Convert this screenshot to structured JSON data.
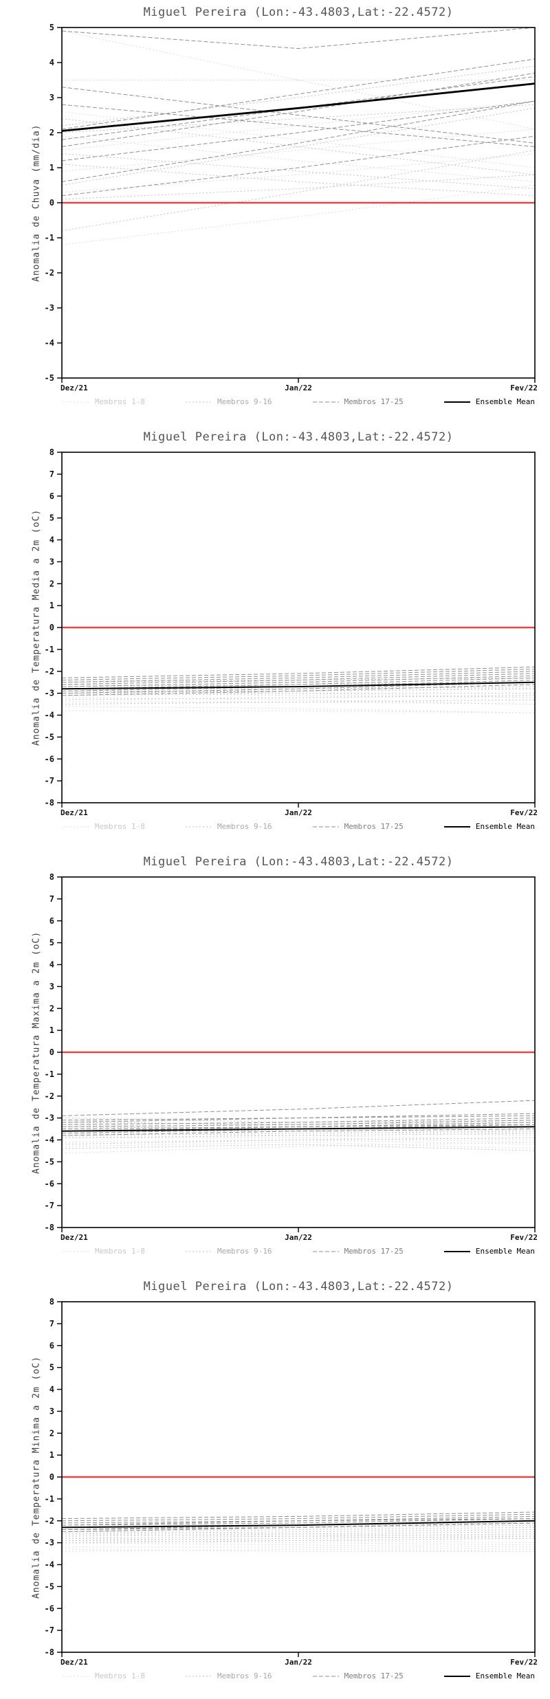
{
  "page": {
    "background": "#ffffff"
  },
  "legend": {
    "items": [
      {
        "label": "Membros 1-8",
        "color": "#dcdcdc",
        "dash": "2 3",
        "width": 1,
        "label_color": "#c9c9c9"
      },
      {
        "label": "Membros 9-16",
        "color": "#c2c2c2",
        "dash": "2 3",
        "width": 1,
        "label_color": "#a8a8a8"
      },
      {
        "label": "Membros 17-25",
        "color": "#8f8f8f",
        "dash": "6 3",
        "width": 1,
        "label_color": "#7d7d7d"
      },
      {
        "label": "Ensemble Mean",
        "color": "#000000",
        "dash": "",
        "width": 2,
        "label_color": "#000000"
      }
    ]
  },
  "chart_data": [
    {
      "type": "line",
      "title": "Miguel Pereira (Lon:-43.4803,Lat:-22.4572)",
      "ylabel": "Anomalia de Chuva (mm/dia)",
      "x": [
        0,
        0.5,
        1
      ],
      "x_tick_labels": [
        "Dez/21",
        "Jan/22",
        "Fev/22"
      ],
      "ylim": [
        -5,
        5
      ],
      "ytick_step": 1,
      "zero_line_color": "#e04848",
      "mean_width": 2.8,
      "members_1_8": [
        [
          4.9,
          3.5,
          2.1
        ],
        [
          3.5,
          3.5,
          3.5
        ],
        [
          2.6,
          1.8,
          1.0
        ],
        [
          1.5,
          2.2,
          2.9
        ],
        [
          0.9,
          1.5,
          2.1
        ],
        [
          0.3,
          0.8,
          1.4
        ],
        [
          -1.2,
          -0.4,
          0.5
        ],
        [
          1.9,
          1.2,
          0.6
        ]
      ],
      "members_9_16": [
        [
          2.2,
          3.0,
          3.9
        ],
        [
          1.1,
          0.6,
          0.2
        ],
        [
          0.5,
          1.6,
          2.7
        ],
        [
          2.0,
          2.4,
          2.8
        ],
        [
          1.4,
          0.9,
          0.4
        ],
        [
          -0.8,
          0.3,
          1.5
        ],
        [
          2.4,
          1.6,
          0.8
        ],
        [
          0.1,
          0.4,
          0.8
        ]
      ],
      "members_17_25": [
        [
          4.9,
          4.4,
          5.0
        ],
        [
          2.1,
          3.1,
          4.1
        ],
        [
          1.6,
          2.6,
          3.7
        ],
        [
          0.6,
          1.7,
          2.9
        ],
        [
          2.8,
          2.2,
          1.6
        ],
        [
          1.2,
          2.0,
          2.9
        ],
        [
          0.2,
          1.0,
          1.9
        ],
        [
          3.3,
          2.5,
          1.7
        ],
        [
          1.8,
          2.7,
          3.6
        ]
      ],
      "ensemble_mean": [
        2.05,
        2.7,
        3.4
      ]
    },
    {
      "type": "line",
      "title": "Miguel Pereira (Lon:-43.4803,Lat:-22.4572)",
      "ylabel": "Anomalia de Temperatura Media a 2m (oC)",
      "x": [
        0,
        0.5,
        1
      ],
      "x_tick_labels": [
        "Dez/21",
        "Jan/22",
        "Fev/22"
      ],
      "ylim": [
        -8,
        8
      ],
      "ytick_step": 1,
      "zero_line_color": "#e04848",
      "mean_width": 2,
      "members_1_8": [
        [
          -2.6,
          -2.7,
          -2.8
        ],
        [
          -3.0,
          -3.1,
          -3.2
        ],
        [
          -3.4,
          -3.4,
          -3.5
        ],
        [
          -3.8,
          -3.8,
          -3.9
        ],
        [
          -2.9,
          -3.0,
          -3.2
        ],
        [
          -3.2,
          -3.3,
          -3.5
        ],
        [
          -2.4,
          -2.5,
          -2.6
        ],
        [
          -3.6,
          -3.7,
          -3.9
        ]
      ],
      "members_9_16": [
        [
          -2.5,
          -2.4,
          -2.3
        ],
        [
          -2.8,
          -2.8,
          -2.7
        ],
        [
          -3.1,
          -3.0,
          -3.0
        ],
        [
          -3.3,
          -3.2,
          -3.1
        ],
        [
          -2.7,
          -2.6,
          -2.5
        ],
        [
          -3.0,
          -2.9,
          -2.8
        ],
        [
          -3.5,
          -3.4,
          -3.3
        ],
        [
          -2.9,
          -2.9,
          -2.8
        ]
      ],
      "members_17_25": [
        [
          -2.3,
          -2.1,
          -1.8
        ],
        [
          -2.5,
          -2.3,
          -2.0
        ],
        [
          -2.7,
          -2.5,
          -2.2
        ],
        [
          -2.9,
          -2.7,
          -2.4
        ],
        [
          -2.6,
          -2.4,
          -2.1
        ],
        [
          -3.0,
          -2.8,
          -2.5
        ],
        [
          -2.8,
          -2.6,
          -2.3
        ],
        [
          -3.1,
          -2.9,
          -2.6
        ],
        [
          -2.4,
          -2.2,
          -1.9
        ]
      ],
      "ensemble_mean": [
        -2.8,
        -2.7,
        -2.5
      ]
    },
    {
      "type": "line",
      "title": "Miguel Pereira (Lon:-43.4803,Lat:-22.4572)",
      "ylabel": "Anomalia de Temperatura Maxima a 2m (oC)",
      "x": [
        0,
        0.5,
        1
      ],
      "x_tick_labels": [
        "Dez/21",
        "Jan/22",
        "Fev/22"
      ],
      "ylim": [
        -8,
        8
      ],
      "ytick_step": 1,
      "zero_line_color": "#e04848",
      "mean_width": 2,
      "members_1_8": [
        [
          -3.3,
          -3.5,
          -3.7
        ],
        [
          -3.7,
          -3.8,
          -4.0
        ],
        [
          -4.1,
          -4.0,
          -4.2
        ],
        [
          -4.6,
          -4.3,
          -4.1
        ],
        [
          -3.9,
          -3.9,
          -4.1
        ],
        [
          -3.5,
          -3.6,
          -3.8
        ],
        [
          -4.3,
          -4.1,
          -4.4
        ],
        [
          -3.1,
          -3.4,
          -3.6
        ]
      ],
      "members_9_16": [
        [
          -3.2,
          -3.3,
          -3.2
        ],
        [
          -3.6,
          -3.6,
          -3.5
        ],
        [
          -3.9,
          -3.8,
          -3.7
        ],
        [
          -4.2,
          -4.0,
          -3.9
        ],
        [
          -3.4,
          -3.5,
          -3.4
        ],
        [
          -3.8,
          -3.7,
          -3.6
        ],
        [
          -4.4,
          -4.2,
          -4.5
        ],
        [
          -3.0,
          -3.2,
          -3.1
        ]
      ],
      "members_17_25": [
        [
          -2.9,
          -2.6,
          -2.2
        ],
        [
          -3.1,
          -3.0,
          -2.8
        ],
        [
          -3.4,
          -3.3,
          -3.1
        ],
        [
          -3.6,
          -3.4,
          -3.2
        ],
        [
          -3.3,
          -3.2,
          -3.0
        ],
        [
          -3.7,
          -3.5,
          -3.3
        ],
        [
          -3.5,
          -3.4,
          -3.3
        ],
        [
          -3.8,
          -3.6,
          -3.5
        ],
        [
          -3.2,
          -3.0,
          -2.9
        ]
      ],
      "ensemble_mean": [
        -3.6,
        -3.5,
        -3.4
      ]
    },
    {
      "type": "line",
      "title": "Miguel Pereira (Lon:-43.4803,Lat:-22.4572)",
      "ylabel": "Anomalia de Temperatura Minima a 2m (oC)",
      "x": [
        0,
        0.5,
        1
      ],
      "x_tick_labels": [
        "Dez/21",
        "Jan/22",
        "Fev/22"
      ],
      "ylim": [
        -8,
        8
      ],
      "ytick_step": 1,
      "zero_line_color": "#e04848",
      "mean_width": 2,
      "members_1_8": [
        [
          -2.6,
          -2.7,
          -2.8
        ],
        [
          -2.9,
          -3.0,
          -3.1
        ],
        [
          -3.2,
          -3.2,
          -3.3
        ],
        [
          -3.4,
          -3.3,
          -3.4
        ],
        [
          -2.8,
          -2.9,
          -3.0
        ],
        [
          -3.0,
          -3.1,
          -3.2
        ],
        [
          -2.5,
          -2.6,
          -2.7
        ],
        [
          -3.3,
          -3.4,
          -3.4
        ]
      ],
      "members_9_16": [
        [
          -2.4,
          -2.3,
          -2.2
        ],
        [
          -2.6,
          -2.5,
          -2.4
        ],
        [
          -2.8,
          -2.7,
          -2.6
        ],
        [
          -3.0,
          -2.9,
          -2.8
        ],
        [
          -2.5,
          -2.4,
          -2.3
        ],
        [
          -2.7,
          -2.6,
          -2.5
        ],
        [
          -2.9,
          -2.8,
          -2.7
        ],
        [
          -2.3,
          -2.2,
          -2.1
        ]
      ],
      "members_17_25": [
        [
          -2.0,
          -1.9,
          -1.7
        ],
        [
          -2.2,
          -2.1,
          -1.9
        ],
        [
          -2.4,
          -2.2,
          -2.0
        ],
        [
          -2.1,
          -2.0,
          -1.8
        ],
        [
          -2.3,
          -2.2,
          -2.0
        ],
        [
          -2.5,
          -2.3,
          -2.1
        ],
        [
          -2.2,
          -2.0,
          -1.9
        ],
        [
          -2.4,
          -2.3,
          -2.1
        ],
        [
          -1.9,
          -1.8,
          -1.6
        ]
      ],
      "ensemble_mean": [
        -2.3,
        -2.2,
        -2.0
      ]
    }
  ]
}
